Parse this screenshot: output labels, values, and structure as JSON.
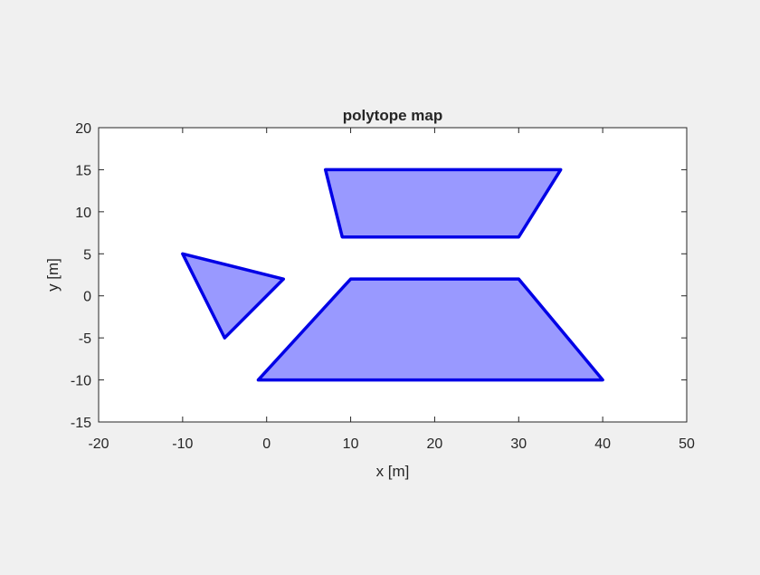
{
  "chart_data": {
    "type": "polygon-map",
    "title": "polytope map",
    "xlabel": "x [m]",
    "ylabel": "y [m]",
    "xlim": [
      -20,
      50
    ],
    "ylim": [
      -15,
      20
    ],
    "xticks": [
      -20,
      -10,
      0,
      10,
      20,
      30,
      40,
      50
    ],
    "yticks": [
      -15,
      -10,
      -5,
      0,
      5,
      10,
      15,
      20
    ],
    "grid": false,
    "legend": "none",
    "fill_color": "#9999ff",
    "edge_color": "#0000e6",
    "polygons": [
      {
        "vertices": [
          [
            7,
            15
          ],
          [
            35,
            15
          ],
          [
            30,
            7
          ],
          [
            9,
            7
          ]
        ]
      },
      {
        "vertices": [
          [
            -10,
            5
          ],
          [
            2,
            2
          ],
          [
            -5,
            -5
          ]
        ]
      },
      {
        "vertices": [
          [
            10,
            2
          ],
          [
            30,
            2
          ],
          [
            40,
            -10
          ],
          [
            -1,
            -10
          ]
        ]
      }
    ]
  }
}
